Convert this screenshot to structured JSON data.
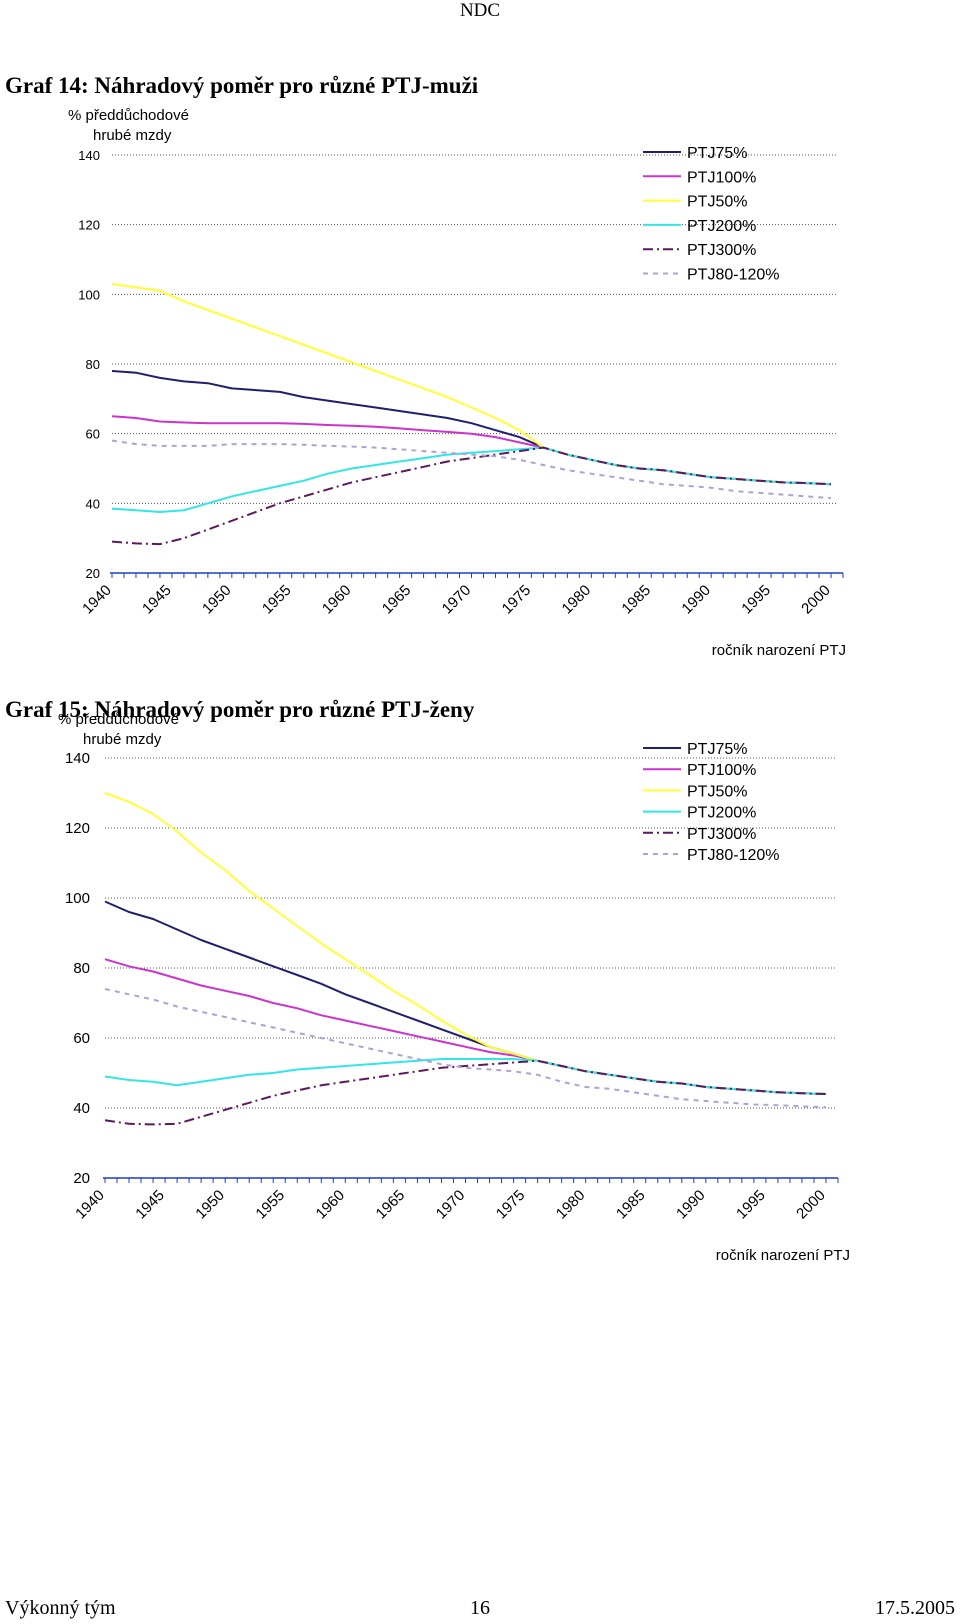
{
  "header": {
    "title": "NDC"
  },
  "footer": {
    "left": "Výkonný tým",
    "page": "16",
    "date": "17.5.2005"
  },
  "charts": [
    {
      "title": "Graf 14: Náhradový poměr pro různé PTJ-muži"
    },
    {
      "title": "Graf 15: Náhradový poměr pro různé PTJ-ženy"
    }
  ],
  "chart_data": [
    {
      "type": "line",
      "title": "Graf 14: Náhradový poměr pro různé PTJ-muži",
      "ylabel": [
        "% předdůchodové",
        "hrubé mzdy"
      ],
      "xlabel": "ročník narození PTJ",
      "xlim": [
        1940,
        2001
      ],
      "ylim": [
        20,
        140
      ],
      "yticks": [
        20,
        40,
        60,
        80,
        100,
        120,
        140
      ],
      "xticks": [
        1940,
        1945,
        1950,
        1955,
        1960,
        1965,
        1970,
        1975,
        1980,
        1985,
        1990,
        1995,
        2000
      ],
      "x": [
        1940,
        1942,
        1944,
        1946,
        1948,
        1950,
        1952,
        1954,
        1956,
        1958,
        1960,
        1962,
        1964,
        1966,
        1968,
        1970,
        1972,
        1974,
        1976,
        1978,
        1980,
        1982,
        1984,
        1986,
        1988,
        1990,
        1992,
        1994,
        1996,
        1998,
        2000
      ],
      "legend_position": "top-right",
      "series": [
        {
          "name": "PTJ75%",
          "color": "#1f1f6e",
          "dash": "solid",
          "values": [
            78,
            77.5,
            76,
            75,
            74.5,
            73,
            72.5,
            72,
            70.5,
            69.5,
            68.5,
            67.5,
            66.5,
            65.5,
            64.5,
            63,
            61,
            59,
            56,
            54,
            52.5,
            51,
            50,
            49.5,
            48.5,
            47.5,
            47,
            46.5,
            46,
            45.8,
            45.5
          ]
        },
        {
          "name": "PTJ100%",
          "color": "#cc33cc",
          "dash": "solid",
          "values": [
            65,
            64.5,
            63.5,
            63.2,
            63,
            63,
            63,
            63,
            62.8,
            62.5,
            62.3,
            62,
            61.5,
            61,
            60.5,
            60,
            59,
            57.5,
            56,
            54,
            52.5,
            51,
            50,
            49.5,
            48.5,
            47.5,
            47,
            46.5,
            46,
            45.8,
            45.5
          ]
        },
        {
          "name": "PTJ50%",
          "color": "#ffff33",
          "dash": "solid",
          "values": [
            103,
            102,
            101,
            98,
            95.5,
            93,
            90.5,
            88,
            85.5,
            83,
            80.5,
            78,
            75.5,
            73,
            70.5,
            67.5,
            64.5,
            61,
            56,
            54,
            52.5,
            51,
            50,
            49.5,
            48.5,
            47.5,
            47,
            46.5,
            46,
            45.8,
            45.5
          ]
        },
        {
          "name": "PTJ200%",
          "color": "#33e6e6",
          "dash": "solid",
          "values": [
            38.5,
            38,
            37.5,
            38,
            40,
            42,
            43.5,
            45,
            46.5,
            48.5,
            50,
            51,
            52,
            53,
            54,
            54.5,
            55,
            55.5,
            56,
            54,
            52.5,
            51,
            50,
            49.5,
            48.5,
            47.5,
            47,
            46.5,
            46,
            45.8,
            45.5
          ]
        },
        {
          "name": "PTJ300%",
          "color": "#5c1a5c",
          "dash": "dashdot",
          "values": [
            29,
            28.5,
            28.3,
            30,
            32.5,
            35,
            37.5,
            40,
            42,
            44,
            46,
            47.5,
            49,
            50.5,
            52,
            53,
            54,
            55,
            56,
            54,
            52.5,
            51,
            50,
            49.5,
            48.5,
            47.5,
            47,
            46.5,
            46,
            45.8,
            45.5
          ]
        },
        {
          "name": "PTJ80-120%",
          "color": "#b0a0d8",
          "dash": "dashed",
          "values": [
            58,
            57,
            56.5,
            56.5,
            56.5,
            57,
            57,
            57,
            56.8,
            56.5,
            56.3,
            56,
            55.5,
            55,
            54.5,
            54,
            53.5,
            52.5,
            51,
            49.5,
            48.5,
            47.5,
            46.5,
            45.5,
            45,
            44.5,
            43.5,
            43,
            42.5,
            42,
            41.5
          ]
        }
      ]
    },
    {
      "type": "line",
      "title": "Graf 15: Náhradový poměr pro různé PTJ-ženy",
      "ylabel": [
        "% předdůchodové",
        "hrubé mzdy"
      ],
      "xlabel": "ročník narození PTJ",
      "xlim": [
        1940,
        2001
      ],
      "ylim": [
        20,
        140
      ],
      "yticks": [
        20,
        40,
        60,
        80,
        100,
        120,
        140
      ],
      "xticks": [
        1940,
        1945,
        1950,
        1955,
        1960,
        1965,
        1970,
        1975,
        1980,
        1985,
        1990,
        1995,
        2000
      ],
      "x": [
        1940,
        1942,
        1944,
        1946,
        1948,
        1950,
        1952,
        1954,
        1956,
        1958,
        1960,
        1962,
        1964,
        1966,
        1968,
        1970,
        1972,
        1974,
        1976,
        1978,
        1980,
        1982,
        1984,
        1986,
        1988,
        1990,
        1992,
        1994,
        1996,
        1998,
        2000
      ],
      "legend_position": "top-right",
      "series": [
        {
          "name": "PTJ75%",
          "color": "#1f1f6e",
          "dash": "solid",
          "values": [
            99,
            96,
            94,
            91,
            88,
            85.5,
            83,
            80.5,
            78,
            75.5,
            72.5,
            70,
            67.5,
            65,
            62.5,
            60,
            57.5,
            55.5,
            53.5,
            52,
            50.5,
            49.5,
            48.5,
            47.5,
            47,
            46,
            45.5,
            45,
            44.5,
            44.2,
            44
          ]
        },
        {
          "name": "PTJ100%",
          "color": "#cc33cc",
          "dash": "solid",
          "values": [
            82.5,
            80.5,
            79,
            77,
            75,
            73.5,
            72,
            70,
            68.5,
            66.5,
            65,
            63.5,
            62,
            60.5,
            59,
            57.5,
            56,
            55,
            53.5,
            52,
            50.5,
            49.5,
            48.5,
            47.5,
            47,
            46,
            45.5,
            45,
            44.5,
            44.2,
            44
          ]
        },
        {
          "name": "PTJ50%",
          "color": "#ffff33",
          "dash": "solid",
          "values": [
            130,
            127.5,
            124,
            119,
            113,
            108,
            102,
            97,
            92,
            87,
            82.5,
            78,
            73.5,
            69.5,
            65,
            61,
            57.5,
            55.5,
            53.5,
            52,
            50.5,
            49.5,
            48.5,
            47.5,
            47,
            46,
            45.5,
            45,
            44.5,
            44.2,
            44
          ]
        },
        {
          "name": "PTJ200%",
          "color": "#33e6e6",
          "dash": "solid",
          "values": [
            49,
            48,
            47.5,
            46.5,
            47.5,
            48.5,
            49.5,
            50,
            51,
            51.5,
            52,
            52.5,
            53,
            53.5,
            54,
            54,
            54,
            54,
            53.5,
            52,
            50.5,
            49.5,
            48.5,
            47.5,
            47,
            46,
            45.5,
            45,
            44.5,
            44.2,
            44
          ]
        },
        {
          "name": "PTJ300%",
          "color": "#5c1a5c",
          "dash": "dashdot",
          "values": [
            36.5,
            35.5,
            35.3,
            35.5,
            37.5,
            39.5,
            41.5,
            43.5,
            45,
            46.5,
            47.5,
            48.5,
            49.5,
            50.5,
            51.5,
            52,
            52.5,
            53,
            53.5,
            52,
            50.5,
            49.5,
            48.5,
            47.5,
            47,
            46,
            45.5,
            45,
            44.5,
            44.2,
            44
          ]
        },
        {
          "name": "PTJ80-120%",
          "color": "#b0a0d8",
          "dash": "dashed",
          "values": [
            74,
            72.5,
            71,
            69,
            67.5,
            66,
            64.5,
            63,
            61.5,
            60,
            58.5,
            57,
            55.5,
            54,
            52.5,
            51.5,
            51,
            50.5,
            49.5,
            47.5,
            46,
            45.5,
            44.5,
            43.5,
            42.5,
            42,
            41.5,
            41,
            40.8,
            40.5,
            40.2
          ]
        }
      ]
    }
  ]
}
